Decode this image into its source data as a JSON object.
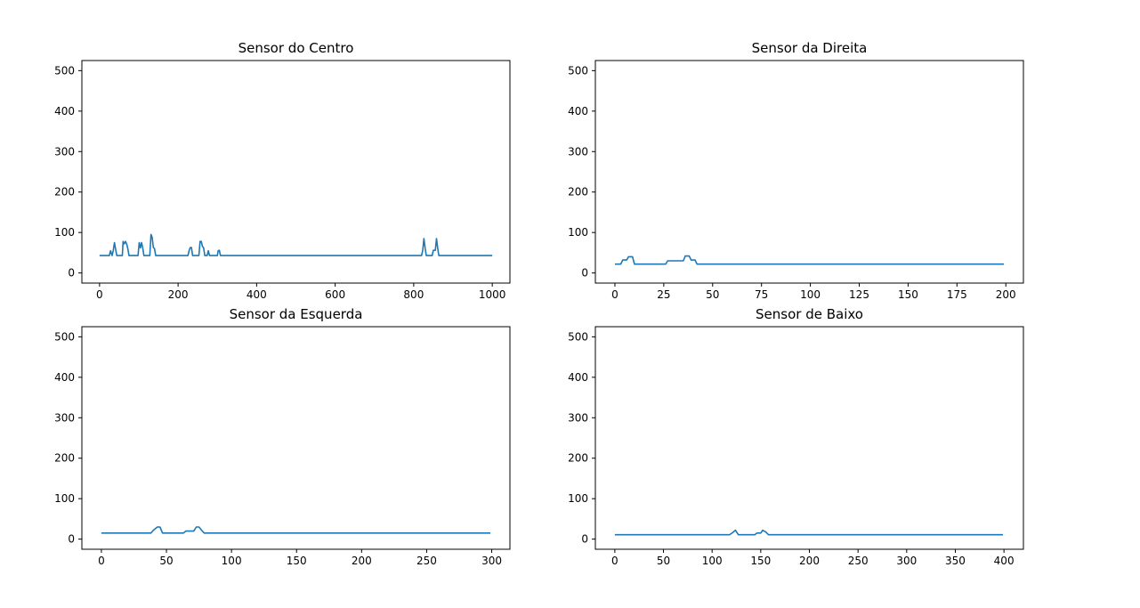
{
  "chart_data": [
    {
      "type": "line",
      "title": "Sensor do Centro",
      "xlabel": "",
      "ylabel": "",
      "xlim": [
        -45,
        1045
      ],
      "ylim": [
        -25,
        525
      ],
      "xticks": [
        0,
        200,
        400,
        600,
        800,
        1000
      ],
      "yticks": [
        0,
        100,
        200,
        300,
        400,
        500
      ],
      "grid": false,
      "series": [
        {
          "color": "#1f77b4",
          "points": [
            [
              0,
              43
            ],
            [
              25,
              43
            ],
            [
              28,
              55
            ],
            [
              32,
              43
            ],
            [
              35,
              56
            ],
            [
              38,
              75
            ],
            [
              41,
              58
            ],
            [
              44,
              43
            ],
            [
              58,
              43
            ],
            [
              60,
              78
            ],
            [
              63,
              72
            ],
            [
              66,
              78
            ],
            [
              69,
              72
            ],
            [
              72,
              60
            ],
            [
              75,
              43
            ],
            [
              98,
              43
            ],
            [
              101,
              75
            ],
            [
              104,
              62
            ],
            [
              107,
              75
            ],
            [
              110,
              62
            ],
            [
              113,
              43
            ],
            [
              128,
              43
            ],
            [
              131,
              95
            ],
            [
              134,
              88
            ],
            [
              137,
              63
            ],
            [
              140,
              60
            ],
            [
              143,
              43
            ],
            [
              225,
              43
            ],
            [
              228,
              55
            ],
            [
              231,
              63
            ],
            [
              234,
              63
            ],
            [
              237,
              43
            ],
            [
              253,
              43
            ],
            [
              256,
              78
            ],
            [
              259,
              78
            ],
            [
              262,
              66
            ],
            [
              265,
              62
            ],
            [
              268,
              43
            ],
            [
              274,
              43
            ],
            [
              277,
              55
            ],
            [
              280,
              43
            ],
            [
              300,
              43
            ],
            [
              302,
              55
            ],
            [
              305,
              56
            ],
            [
              308,
              43
            ],
            [
              500,
              43
            ],
            [
              820,
              43
            ],
            [
              823,
              56
            ],
            [
              826,
              85
            ],
            [
              829,
              62
            ],
            [
              832,
              43
            ],
            [
              847,
              43
            ],
            [
              850,
              56
            ],
            [
              855,
              56
            ],
            [
              858,
              85
            ],
            [
              861,
              62
            ],
            [
              864,
              43
            ],
            [
              1000,
              43
            ]
          ]
        }
      ]
    },
    {
      "type": "line",
      "title": "Sensor da Direita",
      "xlabel": "",
      "ylabel": "",
      "xlim": [
        -10,
        209
      ],
      "ylim": [
        -25,
        525
      ],
      "xticks": [
        0,
        25,
        50,
        75,
        100,
        125,
        150,
        175,
        200
      ],
      "yticks": [
        0,
        100,
        200,
        300,
        400,
        500
      ],
      "grid": false,
      "series": [
        {
          "color": "#1f77b4",
          "points": [
            [
              0,
              22
            ],
            [
              3,
              22
            ],
            [
              4,
              32
            ],
            [
              6,
              32
            ],
            [
              7,
              40
            ],
            [
              9,
              40
            ],
            [
              10,
              22
            ],
            [
              26,
              22
            ],
            [
              27,
              30
            ],
            [
              35,
              30
            ],
            [
              36,
              42
            ],
            [
              38,
              42
            ],
            [
              39,
              32
            ],
            [
              41,
              32
            ],
            [
              42,
              22
            ],
            [
              199,
              22
            ]
          ]
        }
      ]
    },
    {
      "type": "line",
      "title": "Sensor da Esquerda",
      "xlabel": "",
      "ylabel": "",
      "xlim": [
        -15,
        314
      ],
      "ylim": [
        -25,
        525
      ],
      "xticks": [
        0,
        50,
        100,
        150,
        200,
        250,
        300
      ],
      "yticks": [
        0,
        100,
        200,
        300,
        400,
        500
      ],
      "grid": false,
      "series": [
        {
          "color": "#1f77b4",
          "points": [
            [
              0,
              15
            ],
            [
              38,
              15
            ],
            [
              40,
              22
            ],
            [
              43,
              30
            ],
            [
              45,
              30
            ],
            [
              47,
              15
            ],
            [
              63,
              15
            ],
            [
              65,
              20
            ],
            [
              71,
              20
            ],
            [
              73,
              30
            ],
            [
              75,
              30
            ],
            [
              77,
              22
            ],
            [
              79,
              15
            ],
            [
              299,
              15
            ]
          ]
        }
      ]
    },
    {
      "type": "line",
      "title": "Sensor de Baixo",
      "xlabel": "",
      "ylabel": "",
      "xlim": [
        -20,
        420
      ],
      "ylim": [
        -25,
        525
      ],
      "xticks": [
        0,
        50,
        100,
        150,
        200,
        250,
        300,
        350,
        400
      ],
      "yticks": [
        0,
        100,
        200,
        300,
        400,
        500
      ],
      "grid": false,
      "series": [
        {
          "color": "#1f77b4",
          "points": [
            [
              0,
              11
            ],
            [
              118,
              11
            ],
            [
              121,
              16
            ],
            [
              124,
              22
            ],
            [
              127,
              11
            ],
            [
              144,
              11
            ],
            [
              146,
              15
            ],
            [
              150,
              15
            ],
            [
              152,
              22
            ],
            [
              155,
              18
            ],
            [
              158,
              11
            ],
            [
              399,
              11
            ]
          ]
        }
      ]
    }
  ]
}
